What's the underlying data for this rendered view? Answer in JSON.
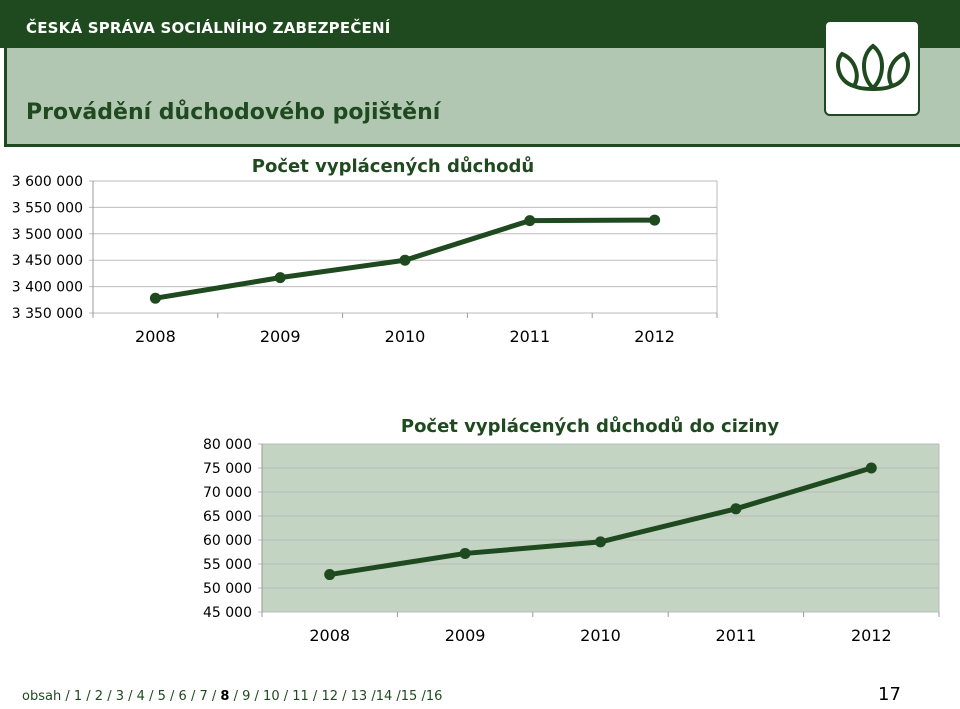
{
  "header": {
    "org_name": "ČESKÁ SPRÁVA SOCIÁLNÍHO ZABEZPEČENÍ",
    "page_title": "Provádění důchodového pojištění"
  },
  "colors": {
    "brand_dark_green": "#1f4a1f",
    "band_green": "#b2c7b2",
    "plot_green": "#c3d4c3"
  },
  "logo": {
    "icon": "lotus-leaf-logo-icon"
  },
  "chart_data": [
    {
      "type": "line",
      "title": "Počet vyplácených důchodů",
      "categories": [
        "2008",
        "2009",
        "2010",
        "2011",
        "2012"
      ],
      "values": [
        3378000,
        3417000,
        3450000,
        3525000,
        3526000
      ],
      "ylim": [
        3350000,
        3600000
      ],
      "yticks": [
        "3 350 000",
        "3 400 000",
        "3 450 000",
        "3 500 000",
        "3 550 000",
        "3 600 000"
      ],
      "grid": true
    },
    {
      "type": "line",
      "title": "Počet vyplácených důchodů do ciziny",
      "categories": [
        "2008",
        "2009",
        "2010",
        "2011",
        "2012"
      ],
      "values": [
        52800,
        57200,
        59600,
        66500,
        75000
      ],
      "ylim": [
        45000,
        80000
      ],
      "yticks": [
        "45 000",
        "50 000",
        "55 000",
        "60 000",
        "65 000",
        "70 000",
        "75 000",
        "80 000"
      ],
      "grid": true
    }
  ],
  "footer": {
    "nav_items": [
      "obsah",
      "1",
      "2",
      "3",
      "4",
      "5",
      "6",
      "7",
      "8",
      "9",
      "10",
      "11",
      "12",
      "13",
      "14",
      "15",
      "16"
    ],
    "current": "8",
    "page_number": "17"
  }
}
